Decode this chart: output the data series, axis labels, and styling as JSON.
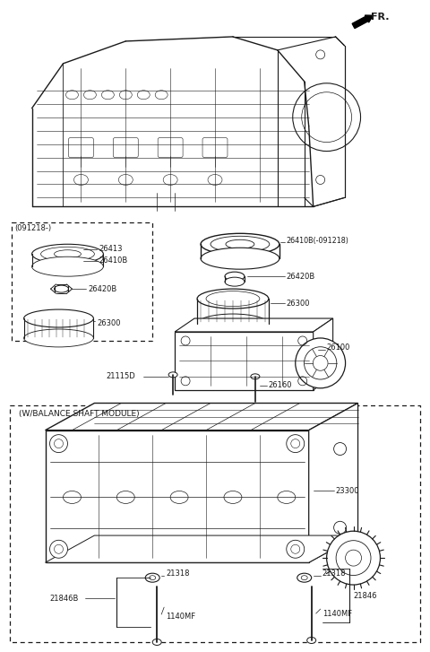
{
  "bg_color": "#ffffff",
  "line_color": "#1a1a1a",
  "fr_label": "FR.",
  "dashed_box1_label": "(091218-)",
  "dashed_box2_label": "(W/BALANCE SHAFT MODULE)"
}
